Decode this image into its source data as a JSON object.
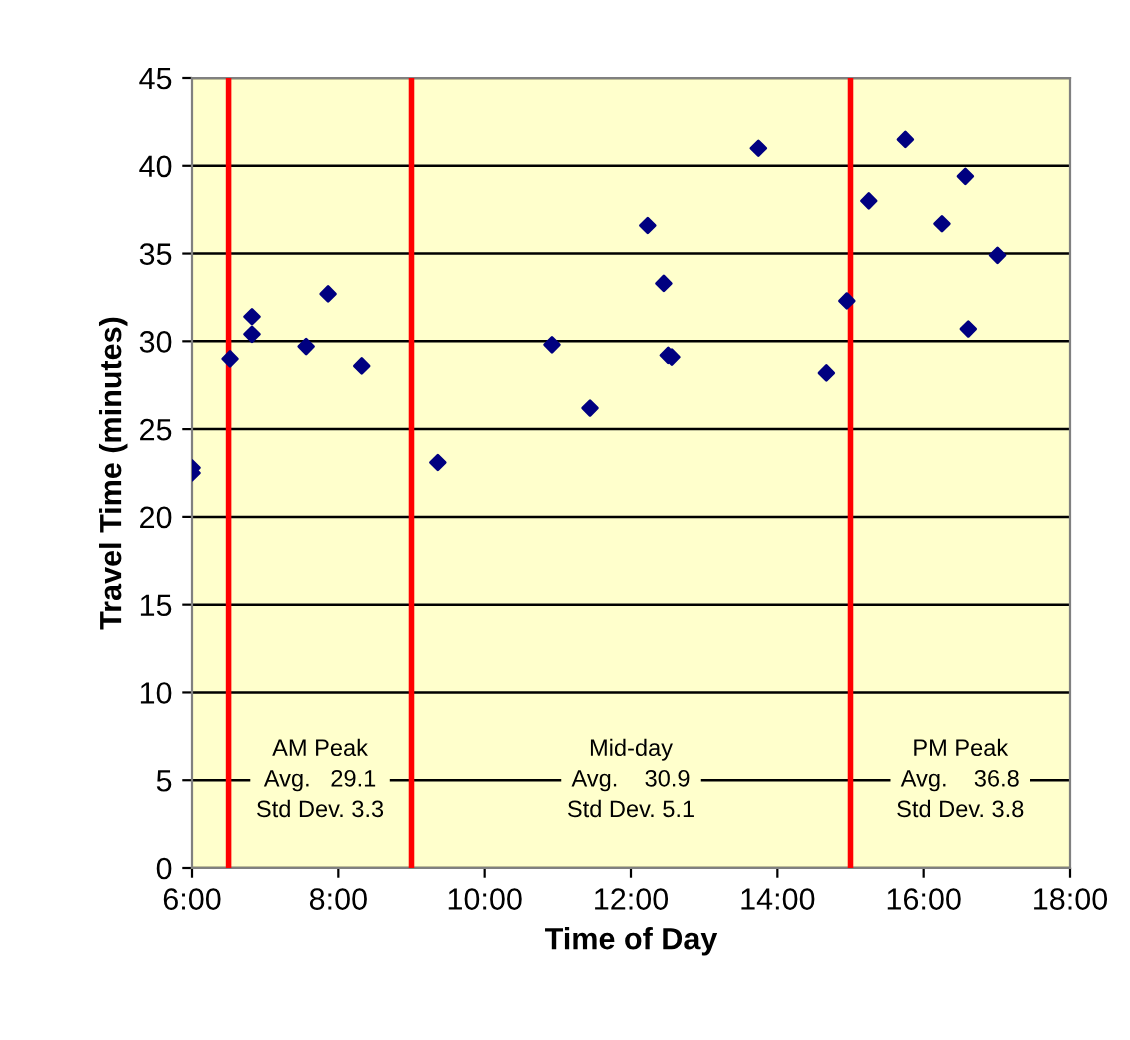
{
  "chart_data": {
    "type": "scatter",
    "xlabel": "Time of Day",
    "ylabel": "Travel Time (minutes)",
    "x": [
      6.0,
      6.0,
      6.52,
      6.82,
      6.82,
      7.56,
      7.86,
      8.32,
      9.36,
      10.92,
      11.44,
      12.23,
      12.45,
      12.51,
      12.56,
      13.74,
      14.67,
      14.95,
      15.25,
      15.75,
      16.25,
      16.57,
      16.61,
      17.01
    ],
    "series": [
      {
        "color": "#000080",
        "values": [
          22.8,
          22.5,
          29.0,
          31.4,
          30.4,
          29.7,
          32.7,
          28.6,
          23.1,
          29.8,
          26.2,
          36.6,
          33.3,
          29.2,
          29.1,
          41.0,
          28.2,
          32.3,
          38.0,
          41.5,
          36.7,
          39.4,
          30.7,
          34.9
        ]
      }
    ],
    "xlim": [
      6,
      18
    ],
    "xticks": [
      {
        "value": 6,
        "label": "6:00"
      },
      {
        "value": 8,
        "label": "8:00"
      },
      {
        "value": 10,
        "label": "10:00"
      },
      {
        "value": 12,
        "label": "12:00"
      },
      {
        "value": 14,
        "label": "14:00"
      },
      {
        "value": 16,
        "label": "16:00"
      },
      {
        "value": 18,
        "label": "18:00"
      }
    ],
    "ylim": [
      0,
      45
    ],
    "yticks": [
      0,
      5,
      10,
      15,
      20,
      25,
      30,
      35,
      40,
      45
    ],
    "ref_lines": [
      {
        "axis": "x",
        "value": 6.5,
        "color": "#ff0000"
      },
      {
        "axis": "x",
        "value": 9,
        "color": "#ff0000"
      },
      {
        "axis": "x",
        "value": 15,
        "color": "#ff0000"
      }
    ],
    "annotations": [
      "AM Peak\nAvg.   29.1\nStd Dev. 3.3",
      "Mid-day\nAvg.    30.9\nStd Dev. 5.1",
      "PM Peak\nAvg.    36.8\nStd Dev. 3.8"
    ],
    "grid": "y",
    "marker": "diamond",
    "legend": false
  }
}
